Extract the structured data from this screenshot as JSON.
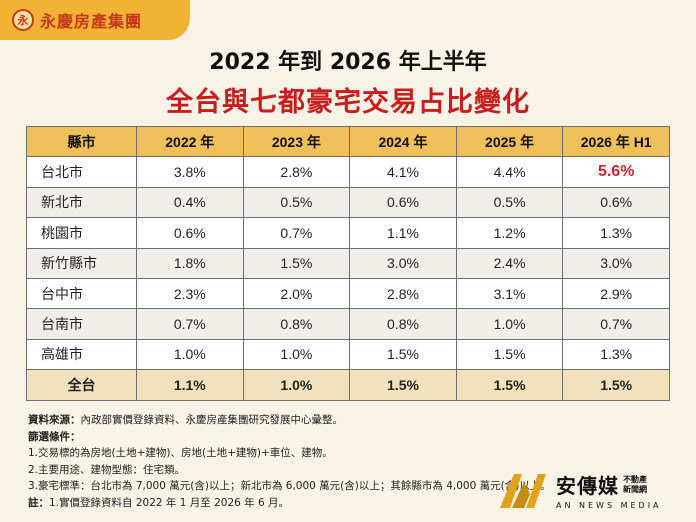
{
  "logo": {
    "text": "永慶房產集團",
    "mark": "永"
  },
  "title": {
    "line1": "2022 年到 2026 年上半年",
    "line2": "全台與七都豪宅交易占比變化"
  },
  "table": {
    "headers": [
      "縣市",
      "2022 年",
      "2023 年",
      "2024 年",
      "2025 年",
      "2026 年 H1"
    ],
    "rows": [
      [
        "台北市",
        "3.8%",
        "2.8%",
        "4.1%",
        "4.4%",
        "5.6%"
      ],
      [
        "新北市",
        "0.4%",
        "0.5%",
        "0.6%",
        "0.5%",
        "0.6%"
      ],
      [
        "桃園市",
        "0.6%",
        "0.7%",
        "1.1%",
        "1.2%",
        "1.3%"
      ],
      [
        "新竹縣市",
        "1.8%",
        "1.5%",
        "3.0%",
        "2.4%",
        "3.0%"
      ],
      [
        "台中市",
        "2.3%",
        "2.0%",
        "2.8%",
        "3.1%",
        "2.9%"
      ],
      [
        "台南市",
        "0.7%",
        "0.8%",
        "0.8%",
        "1.0%",
        "0.7%"
      ],
      [
        "高雄市",
        "1.0%",
        "1.0%",
        "1.5%",
        "1.5%",
        "1.3%"
      ],
      [
        "全台",
        "1.1%",
        "1.0%",
        "1.5%",
        "1.5%",
        "1.5%"
      ]
    ]
  },
  "notes": {
    "source_label": "資料來源：",
    "source_text": "內政部實價登錄資料、永慶房產集團研究發展中心彙整。",
    "criteria_label": "篩選條件：",
    "criteria": [
      "1.交易標的為房地(土地+建物)、房地(土地+建物)+車位、建物。",
      "2.主要用途、建物型態：住宅類。",
      "3.豪宅標準：台北市為 7,000 萬元(含)以上；新北市為 6,000 萬元(含)以上；其餘縣市為 4,000 萬元(含)以上。"
    ],
    "remark_label": "註：",
    "remark_text": "1.實價登錄資料自 2022 年 1 月至 2026 年 6 月。"
  },
  "brand": {
    "name": "安傳媒",
    "tag_line1": "不動產",
    "tag_line2": "新聞網",
    "sub": "AN NEWS MEDIA"
  },
  "colors": {
    "title_red": "#c81d1d",
    "header_gold": "#efc05a",
    "highlight_red": "#d4202a",
    "logo_orange": "#f2b233"
  }
}
